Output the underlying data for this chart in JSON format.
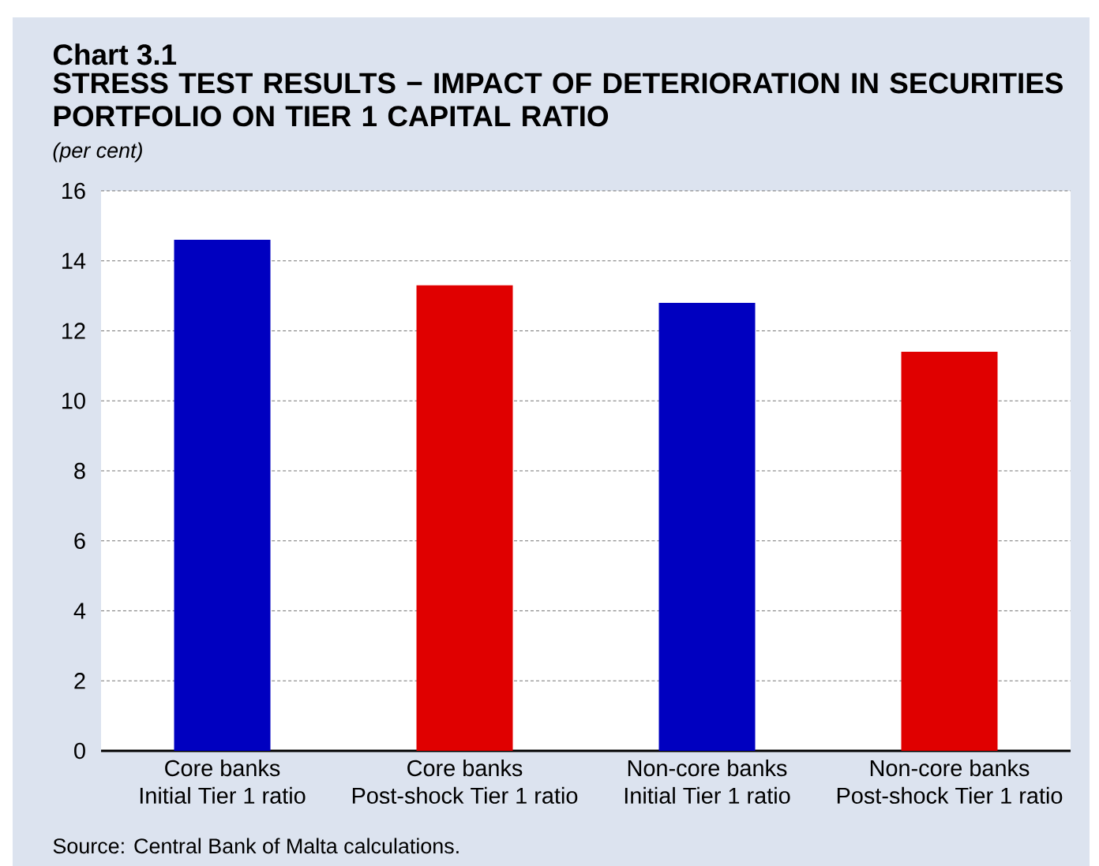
{
  "chart_data": {
    "type": "bar",
    "title": "Chart 3.1",
    "subtitle": "STRESS TEST RESULTS − IMPACT OF DETERIORATION IN SECURITIES PORTFOLIO ON TIER 1 CAPITAL RATIO",
    "ylabel": "(per cent)",
    "categories": [
      "Core banks\nInitial Tier 1 ratio",
      "Core banks\nPost-shock Tier 1 ratio",
      "Non-core banks\nInitial Tier 1 ratio",
      "Non-core banks\nPost-shock Tier 1 ratio"
    ],
    "values": [
      14.6,
      13.3,
      12.8,
      11.4
    ],
    "colors": [
      "#0000c0",
      "#e00000",
      "#0000c0",
      "#e00000"
    ],
    "ylim": [
      0,
      16
    ],
    "yticks": [
      0,
      2,
      4,
      6,
      8,
      10,
      12,
      14,
      16
    ],
    "grid": "y",
    "legend": false,
    "annotations": [
      "Source: Central Bank of Malta calculations."
    ]
  }
}
